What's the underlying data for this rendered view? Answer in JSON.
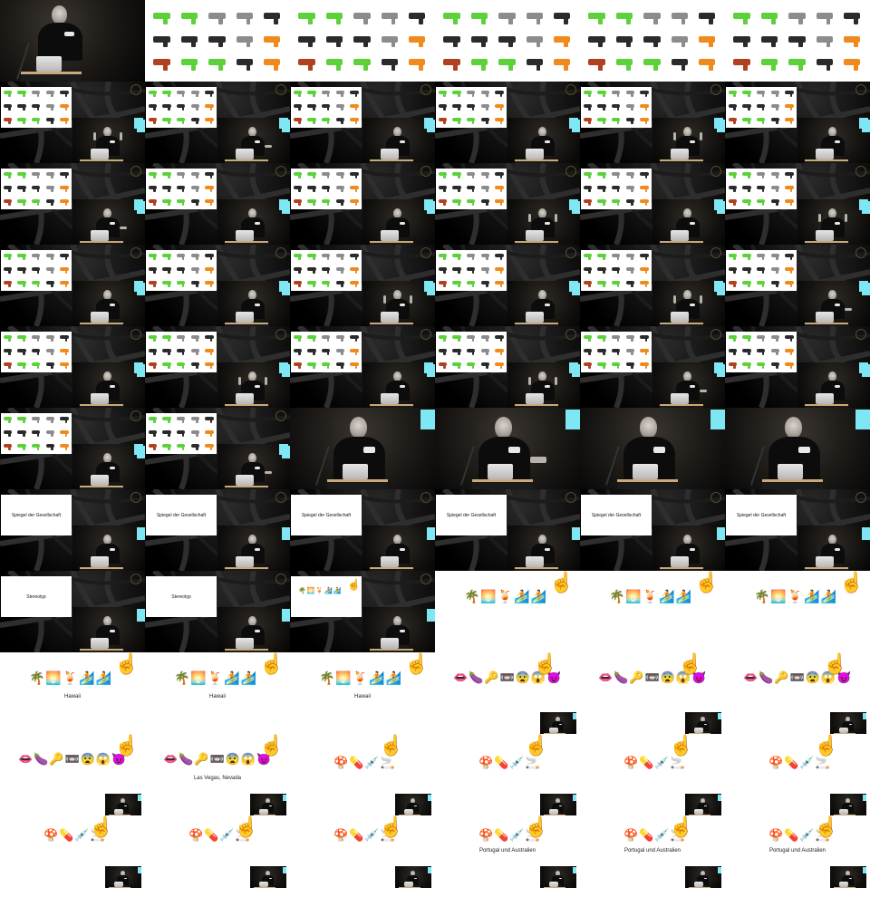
{
  "captions": {
    "spiegel": "Spiegel der Gesellschaft",
    "stereotyp": "Stereotyp",
    "hawaii": "Hawaii",
    "lasvegas": "Las Vegas, Nevada",
    "portugal": "Portugal und Australien"
  },
  "emoji": {
    "hawaii": "🌴🌅🍹🏄🏄",
    "vegas": "👄🍆🔑📼😨😱😈",
    "drugs": "🍄💊💉🚬"
  },
  "icons": {
    "cursor": "hand-pointer-icon",
    "gun": "pistol-icon"
  },
  "colors": {
    "cyan": "#7fe6f4",
    "gun_green": "#5cd13a",
    "gun_dark": "#2b2b2b",
    "gun_grey": "#8c8c8c",
    "gun_orange": "#f08a1c"
  }
}
